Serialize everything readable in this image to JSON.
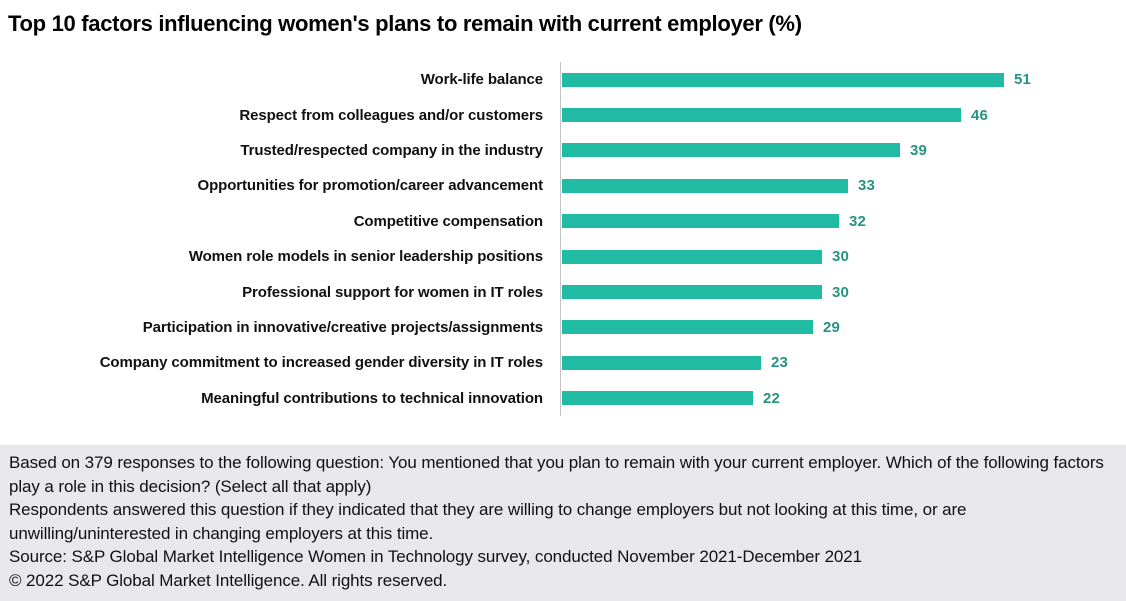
{
  "chart_data": {
    "type": "bar",
    "orientation": "horizontal",
    "title": "Top 10 factors influencing women's plans to remain with current employer (%)",
    "categories": [
      "Work-life balance",
      "Respect from colleagues and/or customers",
      "Trusted/respected company in the industry",
      "Opportunities for promotion/career advancement",
      "Competitive compensation",
      "Women role models in senior leadership positions",
      "Professional support for women in IT roles",
      "Participation in innovative/creative projects/assignments",
      "Company commitment to increased gender diversity in IT roles",
      "Meaningful contributions to technical innovation"
    ],
    "values": [
      51,
      46,
      39,
      33,
      32,
      30,
      30,
      29,
      23,
      22
    ],
    "xlim": [
      0,
      51
    ],
    "grid": false,
    "legend": "none",
    "value_label_position": "end-of-bar",
    "bar_color": "#21baa3",
    "value_label_color": "#269383",
    "axis_line_color": "#c6c6c6"
  },
  "footer": {
    "background": "#e8e8ea",
    "basis": "Based on 379 responses to the following question: You mentioned that you plan to remain with your current employer. Which of the following factors play a role in this decision? (Select all that apply)",
    "respondents": "Respondents answered this question if they indicated that they are willing to change employers but not looking at this time, or are unwilling/uninterested in changing employers at this time.",
    "source": "Source: S&P Global Market Intelligence Women in Technology survey, conducted November 2021-December 2021",
    "copyright": "© 2022 S&P Global Market Intelligence. All rights reserved."
  }
}
